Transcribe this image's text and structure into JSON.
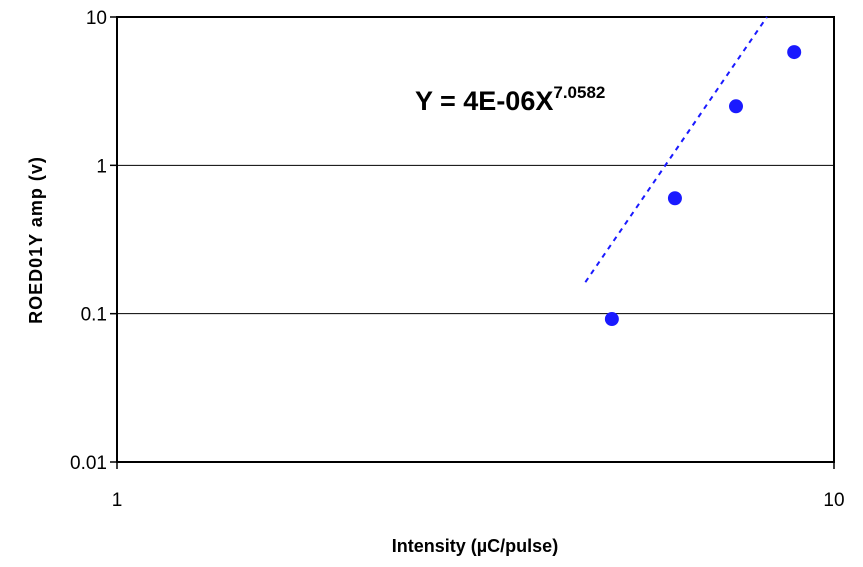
{
  "chart_data": {
    "type": "scatter",
    "xscale": "log",
    "yscale": "log",
    "xlim": [
      1,
      10
    ],
    "ylim": [
      0.01,
      10
    ],
    "xticks": [
      {
        "value": 1,
        "label": "1"
      },
      {
        "value": 10,
        "label": "10"
      }
    ],
    "yticks": [
      {
        "value": 0.01,
        "label": "0.01"
      },
      {
        "value": 0.1,
        "label": "0.1"
      },
      {
        "value": 1,
        "label": "1"
      },
      {
        "value": 10,
        "label": "10"
      }
    ],
    "xlabel": "Intensity (µC/pulse)",
    "ylabel": "ROED01Y amp (v)",
    "grid": "horizontal major gridlines",
    "legend": "none",
    "series": [
      {
        "color": "#1a1aff",
        "marker": "circle",
        "points": [
          {
            "x": 4.9,
            "y": 0.092
          },
          {
            "x": 6.0,
            "y": 0.6
          },
          {
            "x": 7.3,
            "y": 2.5
          },
          {
            "x": 8.8,
            "y": 5.8
          }
        ]
      }
    ],
    "trendline": {
      "type": "power",
      "equation_base": "Y = 4E-06X",
      "equation_exponent": "7.0582",
      "coefficient": 4e-06,
      "exponent": 7.0582,
      "x_range": [
        4.5,
        9.0
      ],
      "color": "#1a1aff",
      "style": "dashed"
    }
  }
}
